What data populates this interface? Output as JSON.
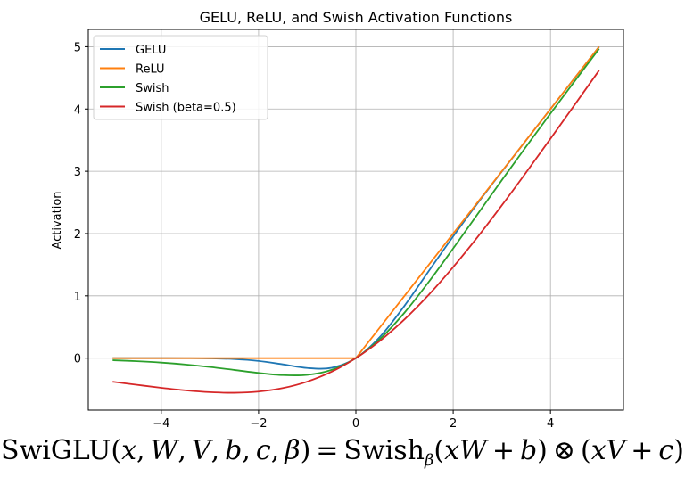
{
  "chart_data": {
    "type": "line",
    "title": "GELU, ReLU, and Swish Activation Functions",
    "xlabel": "",
    "ylabel": "Activation",
    "xlim": [
      -5.5,
      5.5
    ],
    "ylim": [
      -0.835,
      5.278
    ],
    "xticks": [
      -4,
      -2,
      0,
      2,
      4
    ],
    "xtick_labels": [
      "−4",
      "−2",
      "0",
      "2",
      "4"
    ],
    "yticks": [
      0,
      1,
      2,
      3,
      4,
      5
    ],
    "ytick_labels": [
      "0",
      "1",
      "2",
      "3",
      "4",
      "5"
    ],
    "grid": true,
    "legend_placement": "top-left",
    "x": [
      -5,
      -4.5,
      -4,
      -3.5,
      -3,
      -2.5,
      -2,
      -1.5,
      -1,
      -0.5,
      0,
      0.5,
      1,
      1.5,
      2,
      2.5,
      3,
      3.5,
      4,
      4.5,
      5
    ],
    "series": [
      {
        "name": "GELU",
        "color": "#1f77b4",
        "values": [
          0,
          0,
          -0.0001,
          -0.0008,
          -0.004,
          -0.0155,
          -0.0455,
          -0.1002,
          -0.1587,
          -0.1543,
          0,
          0.3457,
          0.8413,
          1.3998,
          1.9545,
          2.4845,
          2.996,
          3.4992,
          3.9999,
          4.5,
          5
        ]
      },
      {
        "name": "ReLU",
        "color": "#ff7f0e",
        "values": [
          0,
          0,
          0,
          0,
          0,
          0,
          0,
          0,
          0,
          0,
          0,
          0.5,
          1,
          1.5,
          2,
          2.5,
          3,
          3.5,
          4,
          4.5,
          5
        ]
      },
      {
        "name": "Swish",
        "color": "#2ca02c",
        "values": [
          -0.0335,
          -0.0497,
          -0.0719,
          -0.1026,
          -0.1423,
          -0.1897,
          -0.2384,
          -0.2736,
          -0.2689,
          -0.1888,
          0,
          0.3112,
          0.7311,
          1.2264,
          1.7616,
          2.3103,
          2.8577,
          3.3974,
          3.9281,
          4.4503,
          4.9665
        ]
      },
      {
        "name": "Swish (beta=0.5)",
        "color": "#d62728",
        "values": [
          -0.3795,
          -0.4289,
          -0.4768,
          -0.518,
          -0.5473,
          -0.5568,
          -0.5379,
          -0.4812,
          -0.3775,
          -0.2189,
          0,
          0.2811,
          0.6225,
          1.0188,
          1.4621,
          1.9432,
          2.4527,
          2.982,
          3.5232,
          4.0711,
          4.6204
        ]
      }
    ]
  },
  "formula": {
    "text": "SwiGLU(x, W, V, b, c, β) = Swish_β(xW + b) ⊗ (xV + c)",
    "segments": [
      {
        "t": "SwiGLU(",
        "it": false
      },
      {
        "t": "x",
        "it": true
      },
      {
        "t": ", ",
        "it": false
      },
      {
        "t": "W",
        "it": true
      },
      {
        "t": ", ",
        "it": false
      },
      {
        "t": "V",
        "it": true
      },
      {
        "t": ", ",
        "it": false
      },
      {
        "t": "b",
        "it": true
      },
      {
        "t": ", ",
        "it": false
      },
      {
        "t": "c",
        "it": true
      },
      {
        "t": ", ",
        "it": false
      },
      {
        "t": "β",
        "it": true
      },
      {
        "t": ") = Swish",
        "it": false
      },
      {
        "t": "β",
        "sub": true
      },
      {
        "t": "(",
        "it": false
      },
      {
        "t": "xW",
        "it": true
      },
      {
        "t": " + ",
        "it": false
      },
      {
        "t": "b",
        "it": true
      },
      {
        "t": ") ⊗ (",
        "it": false
      },
      {
        "t": "xV",
        "it": true
      },
      {
        "t": " + ",
        "it": false
      },
      {
        "t": "c",
        "it": true
      },
      {
        "t": ")",
        "it": false
      }
    ]
  }
}
